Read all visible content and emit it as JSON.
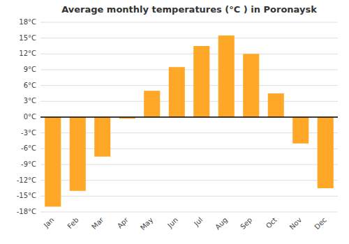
{
  "chart_data": {
    "type": "bar",
    "title": "Average monthly temperatures (°C ) in Poronaysk",
    "categories": [
      "Jan",
      "Feb",
      "Mar",
      "Apr",
      "May",
      "Jun",
      "Jul",
      "Aug",
      "Sep",
      "Oct",
      "Nov",
      "Dec"
    ],
    "values": [
      -17,
      -14,
      -7.5,
      -0.3,
      5,
      9.5,
      13.5,
      15.5,
      12,
      4.5,
      -5,
      -13.5
    ],
    "color": "#FFA726",
    "ylim": [
      -18,
      18
    ],
    "yticks": [
      {
        "value": -18,
        "label": "-18°C"
      },
      {
        "value": -15,
        "label": "-15°C"
      },
      {
        "value": -12,
        "label": "-12°C"
      },
      {
        "value": -9,
        "label": "-9°C"
      },
      {
        "value": -6,
        "label": "-6°C"
      },
      {
        "value": -3,
        "label": "-3°C"
      },
      {
        "value": 0,
        "label": "0°C"
      },
      {
        "value": 3,
        "label": "3°C"
      },
      {
        "value": 6,
        "label": "6°C"
      },
      {
        "value": 9,
        "label": "9°C"
      },
      {
        "value": 12,
        "label": "12°C"
      },
      {
        "value": 15,
        "label": "15°C"
      },
      {
        "value": 18,
        "label": "18°C"
      }
    ],
    "grid": true
  }
}
